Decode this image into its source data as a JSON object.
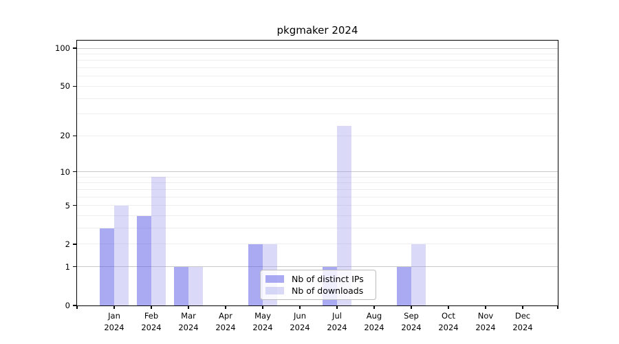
{
  "title": "pkgmaker 2024",
  "chart_data": {
    "type": "bar",
    "title": "pkgmaker 2024",
    "categories": [
      "Jan 2024",
      "Feb 2024",
      "Mar 2024",
      "Apr 2024",
      "May 2024",
      "Jun 2024",
      "Jul 2024",
      "Aug 2024",
      "Sep 2024",
      "Oct 2024",
      "Nov 2024",
      "Dec 2024"
    ],
    "month_labels": [
      "Jan",
      "Feb",
      "Mar",
      "Apr",
      "May",
      "Jun",
      "Jul",
      "Aug",
      "Sep",
      "Oct",
      "Nov",
      "Dec"
    ],
    "year_label": "2024",
    "series": [
      {
        "name": "Nb of distinct IPs",
        "color": "rgba(85,85,230,0.5)",
        "values": [
          3,
          4,
          1,
          0,
          2,
          0,
          1,
          0,
          1,
          0,
          0,
          0
        ]
      },
      {
        "name": "Nb of downloads",
        "color": "rgba(150,150,235,0.35)",
        "values": [
          5,
          9,
          1,
          0,
          2,
          0,
          24,
          0,
          2,
          0,
          0,
          0
        ]
      }
    ],
    "xlabel": "",
    "ylabel": "",
    "yscale": "log1p",
    "ylim": [
      0,
      115
    ],
    "y_ticks": [
      0,
      1,
      2,
      5,
      10,
      20,
      50,
      100
    ],
    "y_major_gridlines": [
      1,
      10,
      100
    ],
    "y_minor_gridlines": [
      2,
      3,
      4,
      5,
      6,
      7,
      8,
      9,
      20,
      30,
      40,
      50,
      60,
      70,
      80,
      90
    ],
    "grid": true,
    "legend_position": "lower center"
  },
  "legend": {
    "items": [
      {
        "label": "Nb of distinct IPs"
      },
      {
        "label": "Nb of downloads"
      }
    ]
  },
  "colors": {
    "series_ips": "rgba(85,85,230,0.5)",
    "series_downloads": "rgba(150,150,235,0.35)",
    "grid_major": "#c8c8c8",
    "grid_minor": "#ededed",
    "spine": "#000000",
    "legend_border": "#bbbbbb"
  }
}
